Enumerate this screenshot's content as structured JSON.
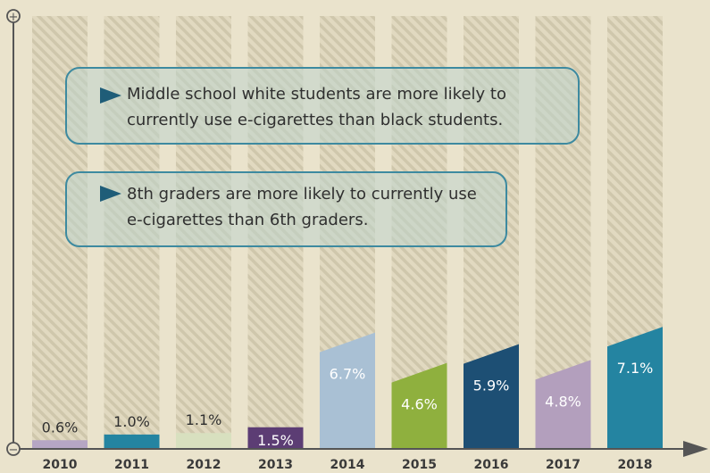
{
  "chart_data": {
    "type": "bar",
    "categories": [
      "2010",
      "2011",
      "2012",
      "2013",
      "2014",
      "2015",
      "2016",
      "2017",
      "2018"
    ],
    "values": [
      0.6,
      1.0,
      1.1,
      1.5,
      6.7,
      4.6,
      5.9,
      4.8,
      7.1
    ],
    "value_labels": [
      "0.6%",
      "1.0%",
      "1.1%",
      "1.5%",
      "6.7%",
      "4.6%",
      "5.9%",
      "4.8%",
      "7.1%"
    ],
    "bar_colors": [
      "#b6a6c4",
      "#2484a1",
      "#d8e0bf",
      "#5c3d74",
      "#a9c0d4",
      "#8fb03e",
      "#1d4f74",
      "#b39fbd",
      "#2484a1"
    ],
    "label_colors": [
      "#2f2f2f",
      "#2f2f2f",
      "#2f2f2f",
      "#ffffff",
      "#ffffff",
      "#ffffff",
      "#ffffff",
      "#ffffff",
      "#ffffff"
    ],
    "ylim": [
      0,
      30
    ],
    "axis_plus_symbol": "+",
    "axis_minus_symbol": "−",
    "title": "",
    "xlabel": "",
    "ylabel": ""
  },
  "notes": [
    {
      "text": "Middle school white students are more likely to currently use e-cigarettes than black students."
    },
    {
      "text": "8th graders are more likely to currently use e-cigarettes than 6th graders."
    }
  ],
  "colors": {
    "background": "#eae3cc",
    "column_stripe": "#d9d1b7",
    "axis": "#555555",
    "note_border": "#3d8aa0",
    "note_arrow": "#1f5d78"
  }
}
